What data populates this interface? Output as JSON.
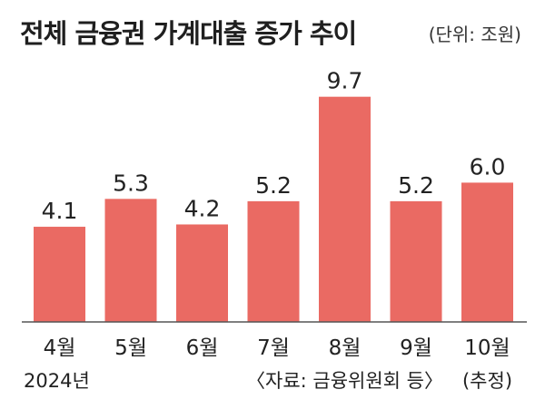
{
  "chart_data": {
    "type": "bar",
    "title": "전체 금융권 가계대출 증가 추이",
    "unit_label": "(단위: 조원)",
    "categories": [
      "4월",
      "5월",
      "6월",
      "7월",
      "8월",
      "9월",
      "10월"
    ],
    "values": [
      4.1,
      5.3,
      4.2,
      5.2,
      9.7,
      5.2,
      6.0
    ],
    "value_labels": [
      "4.1",
      "5.3",
      "4.2",
      "5.2",
      "9.7",
      "5.2",
      "6.0"
    ],
    "year_label": "2024년",
    "source": "〈자료: 금융위원회 등〉",
    "estimate_note": "(추정)",
    "bar_color": "#ea6a63",
    "axis_color": "#555555",
    "ylim": [
      0,
      10
    ]
  }
}
